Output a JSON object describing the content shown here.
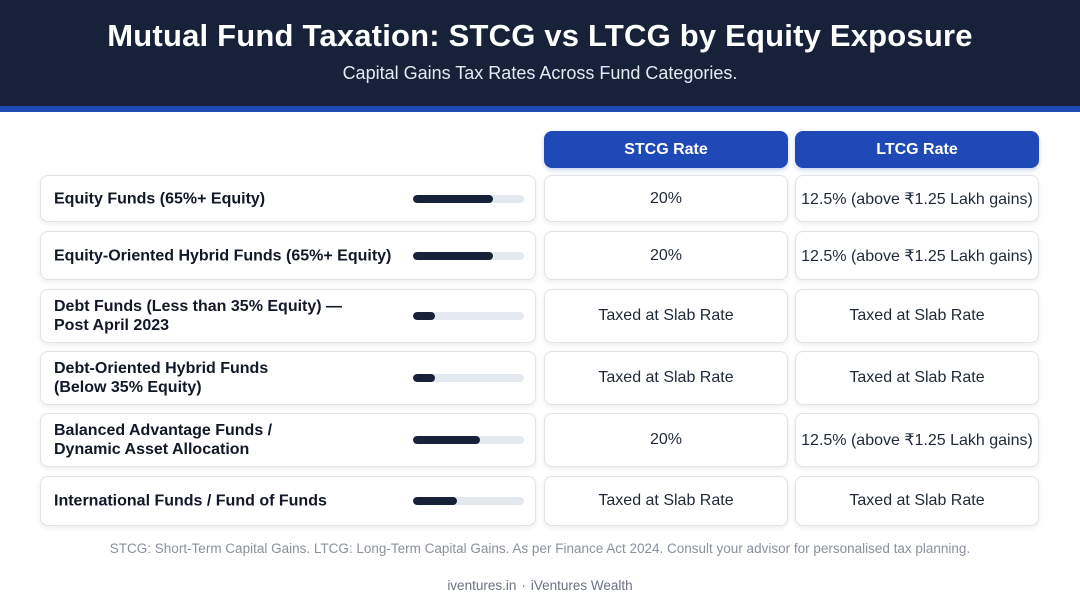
{
  "header": {
    "title": "Mutual Fund Taxation: STCG vs LTCG by Equity Exposure",
    "subtitle": "Capital Gains Tax Rates Across Fund Categories."
  },
  "columns": {
    "stcg": "STCG Rate",
    "ltcg": "LTCG Rate"
  },
  "rows": [
    {
      "category_lines": [
        "Equity Funds (65%+ Equity)"
      ],
      "equity_level": 0.72,
      "stcg": "20%",
      "ltcg": "12.5% (above ₹1.25 Lakh gains)"
    },
    {
      "category_lines": [
        "Equity-Oriented Hybrid Funds (65%+ Equity)"
      ],
      "equity_level": 0.72,
      "stcg": "20%",
      "ltcg": "12.5% (above ₹1.25 Lakh gains)"
    },
    {
      "category_lines": [
        "Debt Funds (Less than 35% Equity) —",
        "Post April 2023"
      ],
      "equity_level": 0.2,
      "stcg": "Taxed at Slab Rate",
      "ltcg": "Taxed at Slab Rate"
    },
    {
      "category_lines": [
        "Debt-Oriented Hybrid Funds",
        "(Below 35% Equity)"
      ],
      "equity_level": 0.2,
      "stcg": "Taxed at Slab Rate",
      "ltcg": "Taxed at Slab Rate"
    },
    {
      "category_lines": [
        "Balanced Advantage Funds /",
        "Dynamic Asset Allocation"
      ],
      "equity_level": 0.6,
      "stcg": "20%",
      "ltcg": "12.5% (above ₹1.25 Lakh gains)"
    },
    {
      "category_lines": [
        "International Funds / Fund of Funds"
      ],
      "equity_level": 0.4,
      "stcg": "Taxed at Slab Rate",
      "ltcg": "Taxed at Slab Rate"
    }
  ],
  "footnote": "STCG: Short-Term Capital Gains. LTCG: Long-Term Capital Gains. As per Finance Act 2024. Consult your advisor for personalised tax planning.",
  "footer": {
    "site": "iventures.in",
    "separator": "·",
    "brand": "iVentures Wealth"
  },
  "colors": {
    "header_bg": "#17213a",
    "accent": "#1f49b6",
    "bar_fill": "#17213a",
    "bar_track": "#e4e8ef"
  }
}
